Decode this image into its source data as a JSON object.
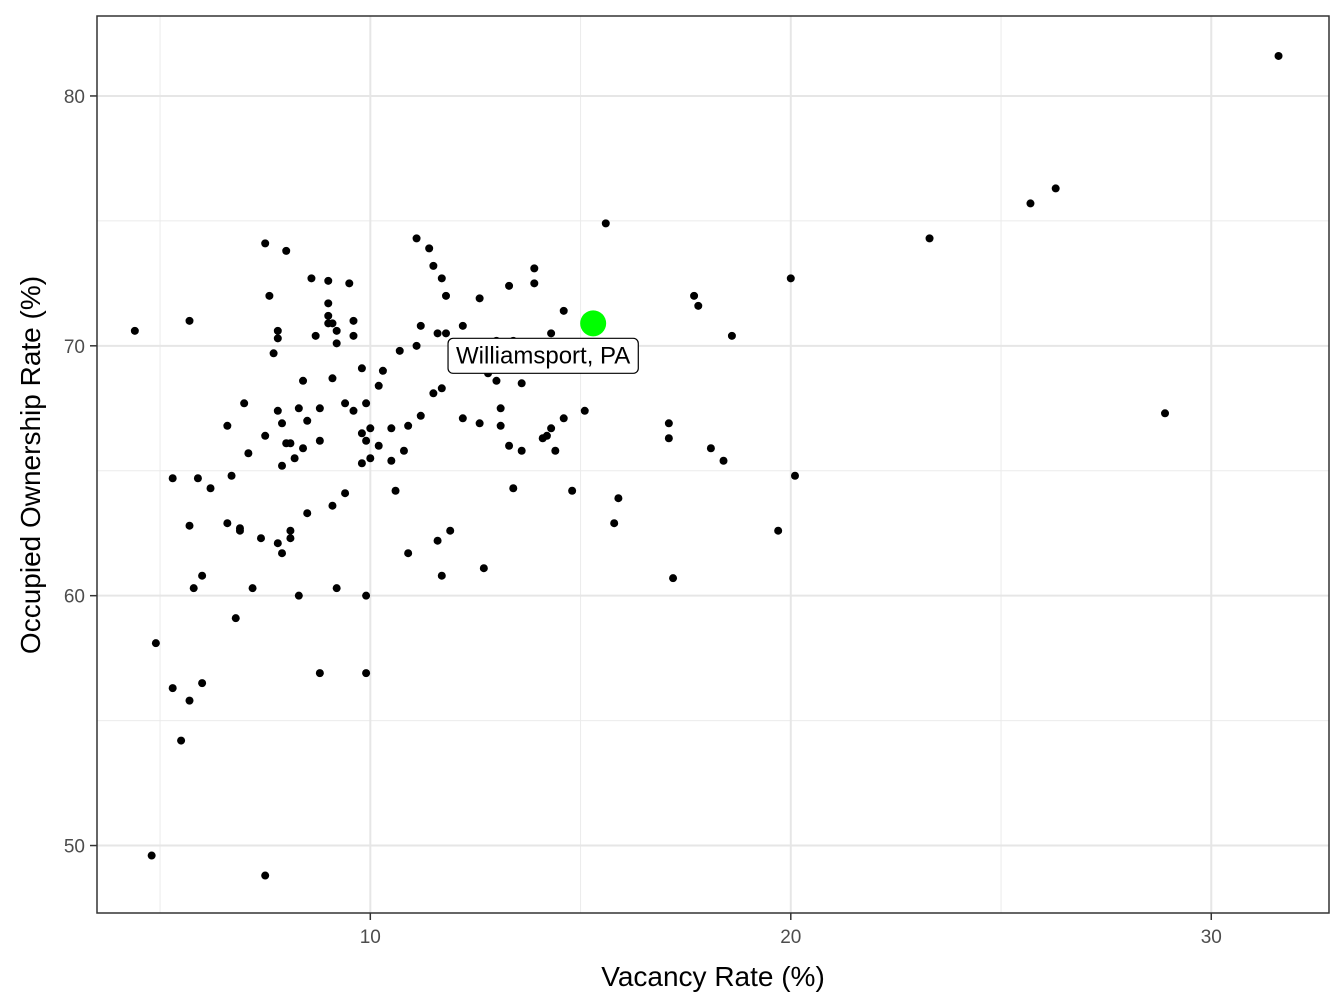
{
  "chart_data": {
    "type": "scatter",
    "title": "",
    "xlabel": "Vacancy Rate (%)",
    "ylabel": "Occupied Ownership Rate (%)",
    "xlim": [
      3.5,
      32.8
    ],
    "ylim": [
      47.3,
      83.2
    ],
    "x_ticks": [
      10,
      20,
      30
    ],
    "y_ticks": [
      50,
      60,
      70,
      80
    ],
    "grid": true,
    "legend": "none",
    "point_color": "#000000",
    "highlight": {
      "label": "Williamsport, PA",
      "x": 15.3,
      "y": 70.9,
      "color": "#00ff00"
    },
    "points": [
      [
        4.4,
        70.6
      ],
      [
        4.8,
        49.6
      ],
      [
        4.9,
        58.1
      ],
      [
        5.3,
        56.3
      ],
      [
        5.3,
        64.7
      ],
      [
        5.5,
        54.2
      ],
      [
        5.7,
        62.8
      ],
      [
        5.7,
        71.0
      ],
      [
        5.7,
        55.8
      ],
      [
        5.8,
        60.3
      ],
      [
        5.9,
        64.7
      ],
      [
        6.0,
        56.5
      ],
      [
        6.0,
        60.8
      ],
      [
        6.2,
        64.3
      ],
      [
        6.6,
        62.9
      ],
      [
        6.6,
        66.8
      ],
      [
        6.7,
        64.8
      ],
      [
        6.8,
        59.1
      ],
      [
        6.9,
        62.6
      ],
      [
        6.9,
        62.7
      ],
      [
        7.0,
        67.7
      ],
      [
        7.1,
        65.7
      ],
      [
        7.2,
        60.3
      ],
      [
        7.4,
        62.3
      ],
      [
        7.5,
        66.4
      ],
      [
        7.5,
        74.1
      ],
      [
        7.6,
        72.0
      ],
      [
        7.5,
        48.8
      ],
      [
        7.7,
        69.7
      ],
      [
        7.8,
        67.4
      ],
      [
        7.8,
        70.6
      ],
      [
        7.8,
        70.3
      ],
      [
        7.8,
        62.1
      ],
      [
        7.9,
        61.7
      ],
      [
        7.9,
        65.2
      ],
      [
        7.9,
        66.9
      ],
      [
        8.0,
        73.8
      ],
      [
        8.0,
        66.1
      ],
      [
        8.1,
        62.6
      ],
      [
        8.1,
        66.1
      ],
      [
        8.1,
        62.3
      ],
      [
        8.2,
        65.5
      ],
      [
        8.3,
        67.5
      ],
      [
        8.3,
        60.0
      ],
      [
        8.4,
        68.6
      ],
      [
        8.4,
        65.9
      ],
      [
        8.5,
        63.3
      ],
      [
        8.5,
        67.0
      ],
      [
        8.6,
        72.7
      ],
      [
        8.7,
        70.4
      ],
      [
        8.8,
        67.5
      ],
      [
        8.8,
        66.2
      ],
      [
        8.8,
        56.9
      ],
      [
        9.0,
        71.7
      ],
      [
        9.0,
        70.9
      ],
      [
        9.0,
        72.6
      ],
      [
        9.0,
        71.2
      ],
      [
        9.1,
        68.7
      ],
      [
        9.1,
        70.9
      ],
      [
        9.1,
        63.6
      ],
      [
        9.2,
        70.6
      ],
      [
        9.2,
        70.1
      ],
      [
        9.2,
        60.3
      ],
      [
        9.4,
        64.1
      ],
      [
        9.4,
        67.7
      ],
      [
        9.5,
        72.5
      ],
      [
        9.6,
        71.0
      ],
      [
        9.6,
        70.4
      ],
      [
        9.6,
        67.4
      ],
      [
        9.8,
        69.1
      ],
      [
        9.8,
        66.5
      ],
      [
        9.8,
        65.3
      ],
      [
        9.9,
        67.7
      ],
      [
        9.9,
        66.2
      ],
      [
        9.9,
        60.0
      ],
      [
        9.9,
        56.9
      ],
      [
        10.0,
        66.7
      ],
      [
        10.0,
        65.5
      ],
      [
        10.2,
        66.0
      ],
      [
        10.2,
        68.4
      ],
      [
        10.3,
        69.0
      ],
      [
        10.5,
        65.4
      ],
      [
        10.5,
        66.7
      ],
      [
        10.6,
        64.2
      ],
      [
        10.7,
        69.8
      ],
      [
        10.8,
        65.8
      ],
      [
        10.9,
        66.8
      ],
      [
        10.9,
        61.7
      ],
      [
        11.1,
        70.0
      ],
      [
        11.1,
        74.3
      ],
      [
        11.2,
        67.2
      ],
      [
        11.2,
        70.8
      ],
      [
        11.4,
        73.9
      ],
      [
        11.5,
        68.1
      ],
      [
        11.5,
        73.2
      ],
      [
        11.6,
        70.5
      ],
      [
        11.6,
        62.2
      ],
      [
        11.7,
        72.7
      ],
      [
        11.7,
        68.3
      ],
      [
        11.7,
        60.8
      ],
      [
        11.8,
        70.5
      ],
      [
        11.8,
        72.0
      ],
      [
        11.9,
        62.6
      ],
      [
        12.0,
        69.8
      ],
      [
        12.2,
        70.8
      ],
      [
        12.2,
        67.1
      ],
      [
        12.4,
        70.1
      ],
      [
        12.6,
        71.9
      ],
      [
        12.6,
        66.9
      ],
      [
        12.7,
        61.1
      ],
      [
        12.8,
        68.9
      ],
      [
        13.0,
        70.2
      ],
      [
        13.0,
        68.6
      ],
      [
        13.1,
        66.8
      ],
      [
        13.1,
        67.5
      ],
      [
        13.3,
        66.0
      ],
      [
        13.3,
        72.4
      ],
      [
        13.4,
        64.3
      ],
      [
        13.4,
        70.2
      ],
      [
        13.6,
        68.5
      ],
      [
        13.6,
        65.8
      ],
      [
        13.7,
        69.8
      ],
      [
        13.9,
        73.1
      ],
      [
        13.9,
        72.5
      ],
      [
        14.1,
        66.3
      ],
      [
        14.2,
        66.4
      ],
      [
        14.3,
        66.7
      ],
      [
        14.3,
        70.5
      ],
      [
        14.4,
        65.8
      ],
      [
        14.6,
        67.1
      ],
      [
        14.6,
        71.4
      ],
      [
        14.8,
        64.2
      ],
      [
        15.1,
        67.4
      ],
      [
        15.6,
        74.9
      ],
      [
        15.8,
        62.9
      ],
      [
        15.9,
        63.9
      ],
      [
        17.1,
        66.9
      ],
      [
        17.1,
        66.3
      ],
      [
        17.2,
        60.7
      ],
      [
        17.7,
        72.0
      ],
      [
        17.8,
        71.6
      ],
      [
        18.1,
        65.9
      ],
      [
        18.4,
        65.4
      ],
      [
        18.6,
        70.4
      ],
      [
        19.7,
        62.6
      ],
      [
        20.0,
        72.7
      ],
      [
        20.1,
        64.8
      ],
      [
        23.3,
        74.3
      ],
      [
        25.7,
        75.7
      ],
      [
        26.3,
        76.3
      ],
      [
        28.9,
        67.3
      ],
      [
        31.6,
        81.6
      ]
    ]
  }
}
